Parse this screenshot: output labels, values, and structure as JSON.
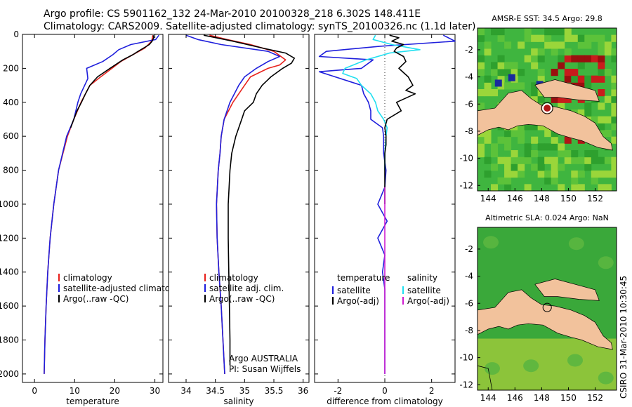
{
  "title": {
    "line1": "Argo profile: CS 5901162_132 24-Mar-2010 20100328_218 6.302S 148.411E",
    "line2": "Climatology: CARS2009. Satellite-adjusted climatology: synTS_20100326.nc (1.1d later)"
  },
  "credit": "CSIRO 31-Mar-2010 10:30:45",
  "colors": {
    "climatology": "#e8231e",
    "satellite": "#1f1fdc",
    "argo": "#000000",
    "satellite_diff_salinity": "#22e0f0",
    "argo_adj_salinity": "#d020d0",
    "land": "#f2c29c"
  },
  "chart_data": [
    {
      "type": "line",
      "id": "temperature",
      "xlabel": "temperature",
      "ylabel": "",
      "xlim": [
        -3,
        32
      ],
      "ylim": [
        2050,
        0
      ],
      "xticks": [
        0,
        10,
        20,
        30
      ],
      "yticks": [
        0,
        200,
        400,
        600,
        800,
        1000,
        1200,
        1400,
        1600,
        1800,
        2000
      ],
      "legend": {
        "placement": "bottom-right",
        "entries": [
          "climatology",
          "satellite-adjusted climatolog",
          "Argo(..raw -QC)"
        ]
      },
      "series": [
        {
          "name": "climatology",
          "color": "#e8231e",
          "depth": [
            5,
            40,
            80,
            120,
            160,
            200,
            250,
            300,
            400,
            500,
            600,
            800,
            1000,
            1200,
            1400,
            1600,
            1800,
            2000
          ],
          "values": [
            29.5,
            29.2,
            27.5,
            24.5,
            21.5,
            19.3,
            16.5,
            13.8,
            11.6,
            9.8,
            8.2,
            6.0,
            4.8,
            3.9,
            3.3,
            2.9,
            2.6,
            2.4
          ]
        },
        {
          "name": "satellite-adjusted climatolog",
          "color": "#1f1fdc",
          "depth": [
            5,
            30,
            60,
            90,
            120,
            160,
            200,
            260,
            300,
            350,
            400,
            450,
            500,
            600,
            800,
            1000,
            1200,
            1400,
            1600,
            1800,
            2000
          ],
          "values": [
            31.0,
            30.2,
            24.0,
            21.0,
            19.5,
            17.0,
            13.0,
            13.3,
            12.5,
            11.5,
            10.8,
            10.3,
            9.8,
            8.0,
            6.0,
            4.8,
            3.9,
            3.3,
            2.9,
            2.6,
            2.4
          ]
        },
        {
          "name": "Argo(..raw -QC)",
          "color": "#000000",
          "depth": [
            5,
            20,
            40,
            60,
            80,
            100,
            120,
            150,
            200,
            250,
            300,
            350,
            400,
            450,
            500,
            550
          ],
          "values": [
            29.6,
            29.7,
            29.3,
            28.6,
            27.2,
            25.8,
            24.5,
            22.0,
            18.8,
            15.7,
            13.8,
            12.7,
            11.7,
            10.6,
            9.8,
            9.0
          ]
        }
      ]
    },
    {
      "type": "line",
      "id": "salinity",
      "xlabel": "salinity",
      "ylabel": "",
      "xlim": [
        33.7,
        36.1
      ],
      "ylim": [
        2050,
        0
      ],
      "xticks": [
        34,
        34.5,
        35,
        35.5,
        36
      ],
      "legend": {
        "placement": "bottom-right",
        "entries": [
          "climatology",
          "satellite adj. clim.",
          "Argo(..raw -QC)"
        ]
      },
      "annotation": [
        "Argo AUSTRALIA",
        "PI: Susan Wijffels"
      ],
      "series": [
        {
          "name": "climatology",
          "color": "#e8231e",
          "depth": [
            5,
            30,
            60,
            100,
            150,
            180,
            200,
            250,
            300,
            400,
            500,
            600,
            700,
            800,
            1000,
            1200,
            1400,
            1600,
            1800,
            2000
          ],
          "values": [
            34.4,
            34.7,
            35.1,
            35.5,
            35.7,
            35.6,
            35.4,
            35.1,
            35.0,
            34.8,
            34.65,
            34.6,
            34.58,
            34.55,
            34.52,
            34.53,
            34.56,
            34.6,
            34.63,
            34.66
          ]
        },
        {
          "name": "satellite adj. clim.",
          "color": "#1f1fdc",
          "depth": [
            5,
            30,
            60,
            100,
            130,
            160,
            200,
            250,
            300,
            400,
            500,
            600,
            700,
            800,
            1000,
            1200,
            1400,
            1600,
            1800,
            2000
          ],
          "values": [
            34.0,
            34.2,
            34.6,
            35.4,
            35.6,
            35.4,
            35.2,
            35.0,
            34.9,
            34.75,
            34.65,
            34.6,
            34.58,
            34.55,
            34.52,
            34.53,
            34.56,
            34.6,
            34.63,
            34.66
          ]
        },
        {
          "name": "Argo(..raw -QC)",
          "color": "#000000",
          "depth": [
            5,
            40,
            80,
            110,
            140,
            170,
            200,
            250,
            300,
            350,
            400,
            450,
            500,
            600,
            700,
            800,
            1000,
            1200,
            1400,
            1600,
            1800,
            1950
          ],
          "values": [
            34.3,
            34.8,
            35.3,
            35.7,
            35.85,
            35.8,
            35.65,
            35.45,
            35.3,
            35.2,
            35.15,
            35.0,
            34.95,
            34.85,
            34.78,
            34.75,
            34.72,
            34.72,
            34.73,
            34.74,
            34.75,
            34.75
          ]
        }
      ]
    },
    {
      "type": "line",
      "id": "difference",
      "xlabel": "difference from climatology",
      "ylabel": "",
      "xlim": [
        -3,
        3
      ],
      "ylim": [
        2050,
        0
      ],
      "xticks": [
        -2,
        0,
        2
      ],
      "legend": {
        "placement": "bottom",
        "temperature_header": "temperature",
        "salinity_header": "salinity",
        "temperature_entries": [
          "satellite",
          "Argo(-adj)"
        ],
        "salinity_entries": [
          "satellite",
          "Argo(-adj)"
        ]
      },
      "series": [
        {
          "name": "satellite (temperature)",
          "color": "#1f1fdc",
          "depth": [
            5,
            40,
            70,
            100,
            130,
            150,
            200,
            220,
            300,
            350,
            400,
            450,
            500,
            550,
            600,
            700,
            800,
            900,
            1000,
            1100,
            1200,
            1300,
            1400,
            1500,
            1600,
            1800,
            2000
          ],
          "values": [
            2.5,
            3.0,
            -0.2,
            -2.5,
            -2.8,
            -0.5,
            -1.0,
            -2.8,
            -1.0,
            -0.9,
            -0.7,
            -0.6,
            -0.6,
            -0.1,
            -0.05,
            -0.05,
            0.05,
            0.0,
            -0.3,
            0.1,
            -0.3,
            0.0,
            -0.1,
            0.0,
            0.0,
            0.0,
            0.0
          ]
        },
        {
          "name": "satellite (salinity)",
          "color": "#22e0f0",
          "depth": [
            5,
            30,
            60,
            90,
            110,
            150,
            200,
            230,
            260,
            300,
            350,
            400,
            450,
            500,
            550,
            600,
            700,
            800
          ],
          "values": [
            -0.4,
            -0.5,
            0.3,
            1.5,
            0.2,
            -0.8,
            -1.7,
            -1.8,
            -1.2,
            -1.0,
            -0.6,
            -0.4,
            -0.3,
            -0.05,
            0.1,
            0.05,
            0.0,
            0.0
          ]
        },
        {
          "name": "Argo(-adj) (temperature)",
          "color": "#000000",
          "depth": [
            5,
            20,
            40,
            60,
            80,
            100,
            130,
            160,
            200,
            250,
            300,
            330,
            350,
            400,
            450,
            500,
            550,
            600,
            650,
            700,
            800,
            900,
            1000
          ],
          "values": [
            0.2,
            0.6,
            0.3,
            0.8,
            0.5,
            0.4,
            0.8,
            0.9,
            0.6,
            1.0,
            1.2,
            0.9,
            1.3,
            0.5,
            0.7,
            0.1,
            0.0,
            0.05,
            0.05,
            0.0,
            0.0,
            0.0,
            0.0
          ]
        },
        {
          "name": "Argo(-adj) (salinity)",
          "color": "#d020d0",
          "depth": [
            900,
            1000,
            1200,
            1400,
            1600,
            1800,
            2000
          ],
          "values": [
            0.0,
            0.0,
            0.0,
            0.0,
            0.0,
            0.0,
            0.0
          ]
        }
      ]
    },
    {
      "type": "heatmap",
      "id": "sst_map",
      "title": "AMSR-E SST: 34.5 Argo: 29.8",
      "xlim": [
        143.2,
        153.6
      ],
      "ylim": [
        -12.4,
        -0.4
      ],
      "xticks": [
        144,
        146,
        148,
        150,
        152
      ],
      "yticks": [
        -2,
        -4,
        -6,
        -8,
        -10,
        -12
      ],
      "argo_position": {
        "lon": 148.411,
        "lat": -6.302
      }
    },
    {
      "type": "heatmap",
      "id": "sla_map",
      "title": "Altimetric SLA: 0.024 Argo: NaN",
      "xlim": [
        143.2,
        153.6
      ],
      "ylim": [
        -12.4,
        -0.4
      ],
      "xticks": [
        144,
        146,
        148,
        150,
        152
      ],
      "yticks": [
        -2,
        -4,
        -6,
        -8,
        -10,
        -12
      ],
      "argo_position": {
        "lon": 148.411,
        "lat": -6.302
      }
    }
  ]
}
